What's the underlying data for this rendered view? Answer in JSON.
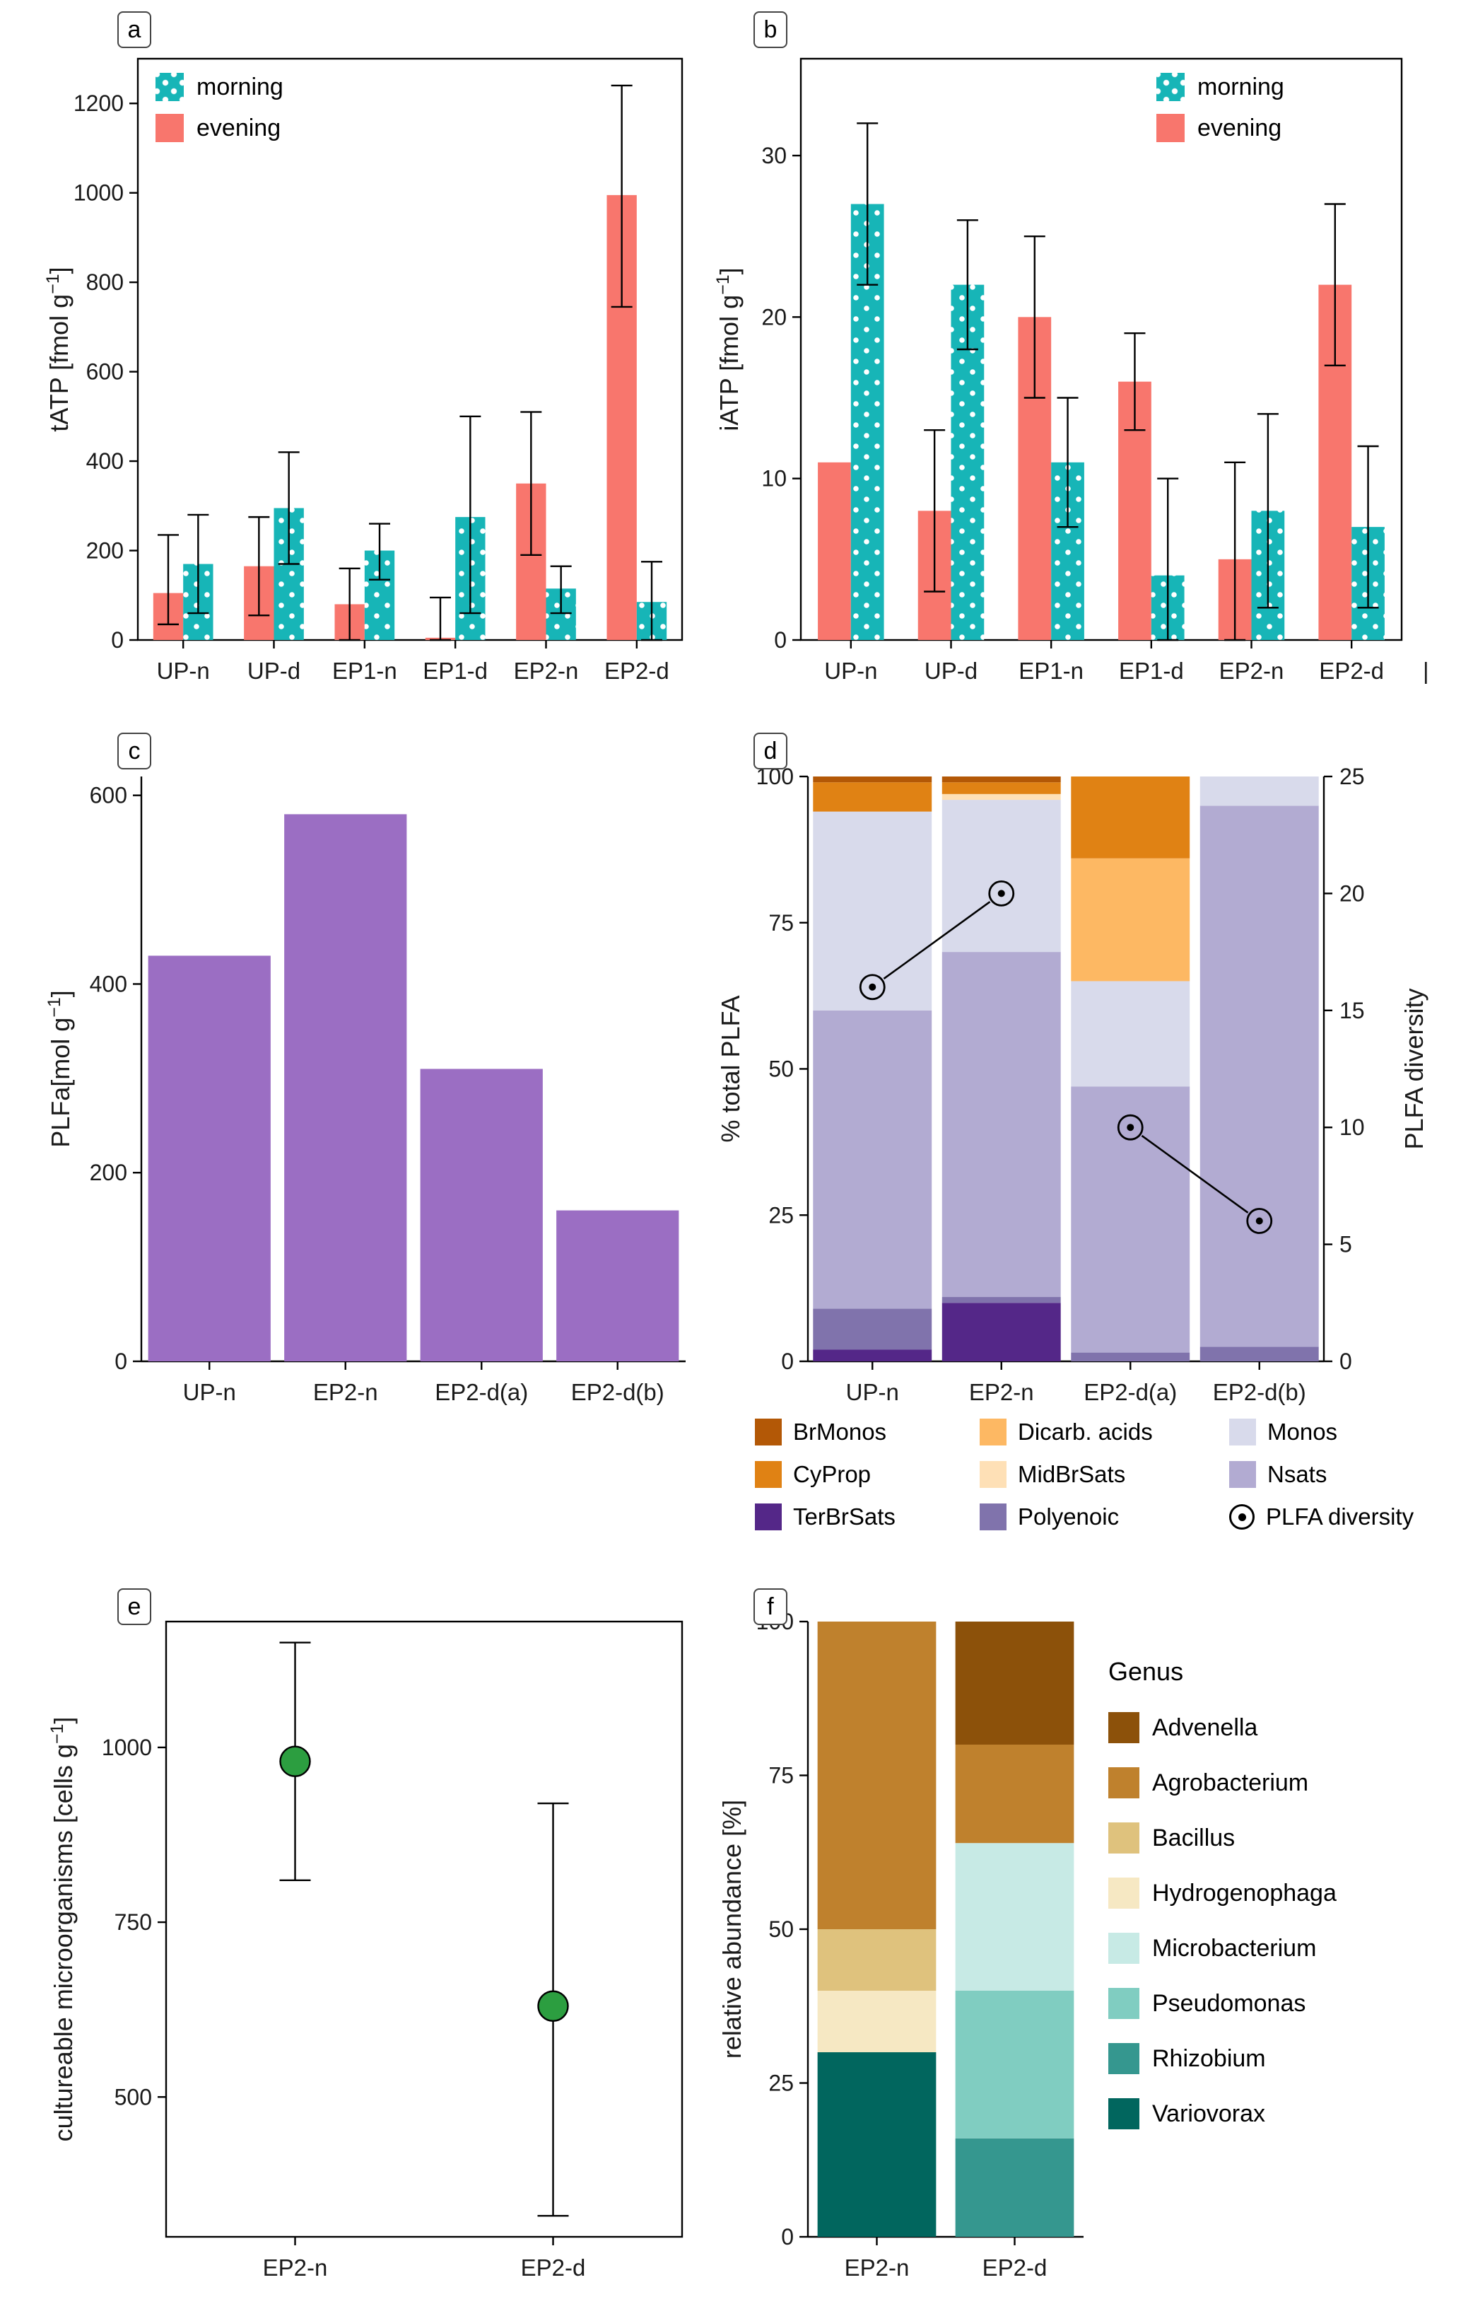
{
  "figure": {
    "background": "#ffffff"
  },
  "chart_data": [
    {
      "tag": "a",
      "type": "bar",
      "ylabel_parts": [
        "tATP  [fmol g",
        "−1",
        "]"
      ],
      "ylim": [
        0,
        1300
      ],
      "yticks": [
        0,
        200,
        400,
        600,
        800,
        1000,
        1200
      ],
      "categories": [
        "UP-n",
        "UP-d",
        "EP1-n",
        "EP1-d",
        "EP2-n",
        "EP2-d"
      ],
      "category_colors": [
        "#ee0000",
        "#0000ee",
        "#ee0000",
        "#0000ee",
        "#ee0000",
        "#0000ee"
      ],
      "series": [
        {
          "name": "evening",
          "color": "#f8766d",
          "dotted": false,
          "values": [
            105,
            165,
            80,
            5,
            350,
            995
          ],
          "err_low": [
            35,
            55,
            0,
            0,
            190,
            745
          ],
          "err_high": [
            235,
            275,
            160,
            95,
            510,
            1240
          ]
        },
        {
          "name": "morning",
          "color": "#17b5b7",
          "dotted": true,
          "values": [
            170,
            295,
            200,
            275,
            115,
            85
          ],
          "err_low": [
            60,
            170,
            135,
            60,
            60,
            0
          ],
          "err_high": [
            280,
            420,
            260,
            500,
            165,
            175
          ]
        }
      ]
    },
    {
      "tag": "b",
      "type": "bar",
      "ylabel_parts": [
        "iATP  [fmol g",
        "−1",
        "]"
      ],
      "ylim": [
        0,
        36
      ],
      "yticks": [
        0,
        10,
        20,
        30
      ],
      "categories": [
        "UP-n",
        "UP-d",
        "EP1-n",
        "EP1-d",
        "EP2-n",
        "EP2-d"
      ],
      "category_colors": [
        "#ee0000",
        "#0000ee",
        "#ee0000",
        "#0000ee",
        "#ee0000",
        "#0000ee"
      ],
      "trailing_mark": "|",
      "series": [
        {
          "name": "evening",
          "color": "#f8766d",
          "dotted": false,
          "values": [
            11,
            8,
            20,
            16,
            5,
            22
          ],
          "err_low": [
            null,
            3,
            15,
            13,
            0,
            17
          ],
          "err_high": [
            null,
            13,
            25,
            19,
            11,
            27
          ]
        },
        {
          "name": "morning",
          "color": "#17b5b7",
          "dotted": true,
          "values": [
            27,
            22,
            11,
            4,
            8,
            7
          ],
          "err_low": [
            22,
            18,
            7,
            0,
            2,
            2
          ],
          "err_high": [
            32,
            26,
            15,
            10,
            14,
            12
          ]
        }
      ]
    },
    {
      "tag": "c",
      "type": "bar",
      "ylabel_parts": [
        "PLFa[mol g",
        "−1",
        "]"
      ],
      "ylim": [
        0,
        620
      ],
      "yticks": [
        0,
        200,
        400,
        600
      ],
      "categories": [
        "UP-n",
        "EP2-n",
        "EP2-d(a)",
        "EP2-d(b)"
      ],
      "category_colors": [
        "#ee0000",
        "#ee0000",
        "#0000ee",
        "#0000ee"
      ],
      "bar_color": "#9b6ec3",
      "values": [
        430,
        580,
        310,
        160
      ]
    },
    {
      "tag": "d",
      "type": "stacked_bar",
      "ylabel_parts": [
        "% total PLFA",
        "",
        ""
      ],
      "right_ylabel": "PLFA diversity",
      "ylim": [
        0,
        100
      ],
      "yticks": [
        0,
        25,
        50,
        75,
        100
      ],
      "right_ylim": [
        0,
        25
      ],
      "right_yticks": [
        0,
        5,
        10,
        15,
        20,
        25
      ],
      "categories": [
        "UP-n",
        "EP2-n",
        "EP2-d(a)",
        "EP2-d(b)"
      ],
      "category_colors": [
        "#ee0000",
        "#ee0000",
        "#0000ee",
        "#0000ee"
      ],
      "series": [
        {
          "name": "TerBrSats",
          "color": "#542788",
          "values": [
            2,
            10,
            0,
            0
          ]
        },
        {
          "name": "Polyenoic",
          "color": "#8073ac",
          "values": [
            7,
            1,
            1.5,
            2.5
          ]
        },
        {
          "name": "Nsats",
          "color": "#b2abd2",
          "values": [
            51,
            59,
            45.5,
            92.5
          ]
        },
        {
          "name": "Monos",
          "color": "#d8daeb",
          "values": [
            34,
            26,
            18,
            5
          ]
        },
        {
          "name": "MidBrSats",
          "color": "#fee0b6",
          "values": [
            0,
            1,
            0,
            0
          ]
        },
        {
          "name": "Dicarb. acids",
          "color": "#fdb863",
          "values": [
            0,
            0,
            21,
            0
          ]
        },
        {
          "name": "CyProp",
          "color": "#e08214",
          "values": [
            5,
            2,
            14,
            0
          ]
        },
        {
          "name": "BrMonos",
          "color": "#b35806",
          "values": [
            1,
            1,
            0,
            0
          ]
        }
      ],
      "diversity": {
        "name": "PLFA diversity",
        "values": [
          16,
          20,
          10,
          6
        ],
        "pairs": [
          [
            0,
            1
          ],
          [
            2,
            3
          ]
        ]
      }
    },
    {
      "tag": "e",
      "type": "scatter",
      "ylabel_parts": [
        "cultureable microorganisms [cells g",
        "−1",
        "]"
      ],
      "ylim": [
        300,
        1180
      ],
      "yticks": [
        500,
        750,
        1000
      ],
      "categories": [
        "EP2-n",
        "EP2-d"
      ],
      "category_colors": [
        "#ee0000",
        "#0000ee"
      ],
      "point_color": "#2c9e40",
      "values": [
        980,
        630
      ],
      "err_low": [
        810,
        330
      ],
      "err_high": [
        1150,
        920
      ]
    },
    {
      "tag": "f",
      "type": "stacked_bar",
      "ylabel_parts": [
        "relative abundance [%]",
        "",
        ""
      ],
      "ylim": [
        0,
        100
      ],
      "yticks": [
        0,
        25,
        50,
        75,
        100
      ],
      "categories": [
        "EP2-n",
        "EP2-d"
      ],
      "category_colors": [
        "#ee0000",
        "#0000ee"
      ],
      "series": [
        {
          "name": "Variovorax",
          "color": "#01665e",
          "values": [
            30,
            0
          ]
        },
        {
          "name": "Rhizobium",
          "color": "#35978f",
          "values": [
            0,
            16
          ]
        },
        {
          "name": "Pseudomonas",
          "color": "#80cdc1",
          "values": [
            0,
            24
          ]
        },
        {
          "name": "Microbacterium",
          "color": "#c7eae5",
          "values": [
            0,
            24
          ]
        },
        {
          "name": "Hydrogenophaga",
          "color": "#f6e8c3",
          "values": [
            10,
            0
          ]
        },
        {
          "name": "Bacillus",
          "color": "#dfc27d",
          "values": [
            10,
            0
          ]
        },
        {
          "name": "Agrobacterium",
          "color": "#bf812d",
          "values": [
            50,
            16
          ]
        },
        {
          "name": "Advenella",
          "color": "#8c510a",
          "values": [
            0,
            20
          ]
        }
      ]
    }
  ],
  "legends": {
    "d": {
      "items": [
        {
          "label": "BrMonos",
          "color": "#b35806"
        },
        {
          "label": "CyProp",
          "color": "#e08214"
        },
        {
          "label": "TerBrSats",
          "color": "#542788"
        },
        {
          "label": "Dicarb. acids",
          "color": "#fdb863"
        },
        {
          "label": "MidBrSats",
          "color": "#fee0b6"
        },
        {
          "label": "Polyenoic",
          "color": "#8073ac"
        },
        {
          "label": "Monos",
          "color": "#d8daeb"
        },
        {
          "label": "Nsats",
          "color": "#b2abd2"
        },
        {
          "label": "PLFA diversity",
          "symbol": "circle-dot"
        }
      ]
    },
    "f": {
      "title": "Genus",
      "items": [
        {
          "label": "Advenella",
          "color": "#8c510a"
        },
        {
          "label": "Agrobacterium",
          "color": "#bf812d"
        },
        {
          "label": "Bacillus",
          "color": "#dfc27d"
        },
        {
          "label": "Hydrogenophaga",
          "color": "#f6e8c3"
        },
        {
          "label": "Microbacterium",
          "color": "#c7eae5"
        },
        {
          "label": "Pseudomonas",
          "color": "#80cdc1"
        },
        {
          "label": "Rhizobium",
          "color": "#35978f"
        },
        {
          "label": "Variovorax",
          "color": "#01665e"
        }
      ]
    }
  }
}
